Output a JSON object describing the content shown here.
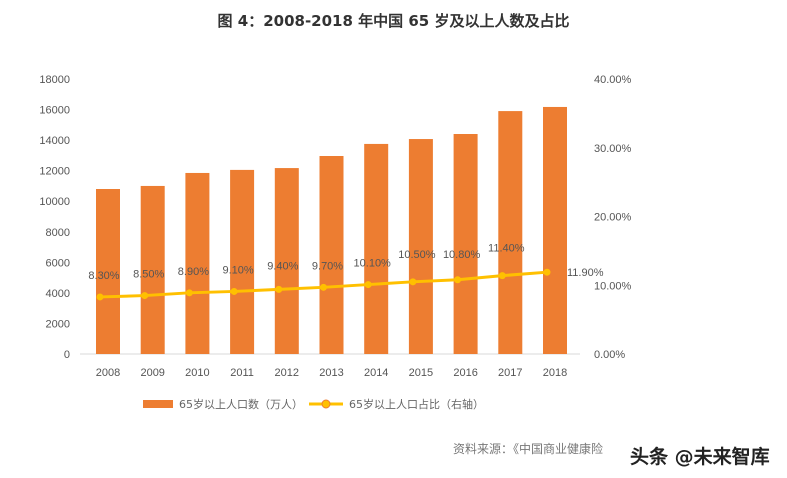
{
  "chart_data": {
    "type": "bar+line",
    "title": "图  4：2008-2018 年中国 65 岁及以上人数及占比",
    "categories": [
      "2008",
      "2009",
      "2010",
      "2011",
      "2012",
      "2013",
      "2014",
      "2015",
      "2016",
      "2017",
      "2018"
    ],
    "series": [
      {
        "name": "65岁以上人口数（万人）",
        "type": "bar",
        "axis": "left",
        "color": "#ED7D31",
        "values": [
          10800,
          11000,
          11850,
          12050,
          12170,
          12960,
          13750,
          14070,
          14400,
          15900,
          16170
        ]
      },
      {
        "name": "65岁以上人口占比（右轴）",
        "type": "line",
        "axis": "right",
        "color": "#FFC000",
        "values": [
          8.3,
          8.5,
          8.9,
          9.1,
          9.4,
          9.7,
          10.1,
          10.5,
          10.8,
          11.4,
          11.9
        ],
        "labels": [
          "8.30%",
          "8.50%",
          "8.90%",
          "9.10%",
          "9.40%",
          "9.70%",
          "10.10%",
          "10.50%",
          "10.80%",
          "11.40%",
          "11.90%"
        ]
      }
    ],
    "ylim": [
      0,
      18000
    ],
    "yticks": [
      "0",
      "2000",
      "4000",
      "6000",
      "8000",
      "10000",
      "12000",
      "14000",
      "16000",
      "18000"
    ],
    "y2lim": [
      0,
      40
    ],
    "y2ticks": [
      "0.00%",
      "10.00%",
      "20.00%",
      "30.00%",
      "40.00%"
    ],
    "grid": false,
    "legend": "bottom"
  },
  "source": "资料来源：《中国商业健康险",
  "watermark": "头条 @未来智库"
}
